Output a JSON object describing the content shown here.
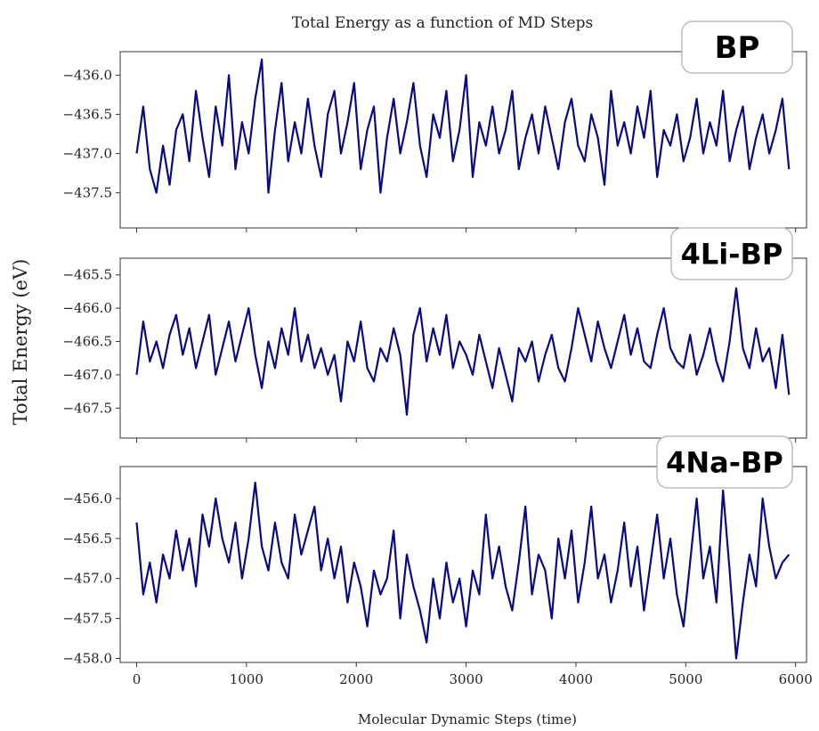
{
  "chart_data": {
    "type": "line",
    "title": "Total Energy as a function of MD Steps",
    "xlabel": "Molecular Dynamic Steps  (time)",
    "ylabel": "Total Energy  (eV)",
    "line_color": "#0a0a80",
    "xlim": [
      -150,
      6100
    ],
    "xticks": [
      0,
      1000,
      2000,
      3000,
      4000,
      5000,
      6000
    ],
    "grid": false,
    "panels": [
      {
        "label": "BP",
        "ylim": [
          -437.95,
          -435.7
        ],
        "yticks": [
          -436.0,
          -436.5,
          -437.0,
          -437.5
        ],
        "ytick_labels": [
          "−436.0",
          "−436.5",
          "−437.0",
          "−437.5"
        ],
        "series": [
          {
            "x_start": 0,
            "x_step": 60,
            "y": [
              -437.0,
              -436.4,
              -437.2,
              -437.5,
              -436.9,
              -437.4,
              -436.7,
              -436.5,
              -437.1,
              -436.2,
              -436.8,
              -437.3,
              -436.4,
              -436.9,
              -436.0,
              -437.2,
              -436.6,
              -437.0,
              -436.3,
              -435.8,
              -437.5,
              -436.7,
              -436.1,
              -437.1,
              -436.6,
              -437.0,
              -436.3,
              -436.9,
              -437.3,
              -436.5,
              -436.2,
              -437.0,
              -436.6,
              -436.1,
              -437.2,
              -436.7,
              -436.4,
              -437.5,
              -436.8,
              -436.3,
              -437.0,
              -436.6,
              -436.1,
              -436.9,
              -437.3,
              -436.5,
              -436.8,
              -436.2,
              -437.1,
              -436.7,
              -436.0,
              -437.3,
              -436.6,
              -436.9,
              -436.4,
              -437.0,
              -436.7,
              -436.2,
              -437.2,
              -436.8,
              -436.5,
              -437.0,
              -436.4,
              -436.8,
              -437.2,
              -436.6,
              -436.3,
              -436.9,
              -437.1,
              -436.5,
              -436.8,
              -437.4,
              -436.2,
              -436.9,
              -436.6,
              -437.0,
              -436.4,
              -436.8,
              -436.2,
              -437.3,
              -436.7,
              -436.9,
              -436.5,
              -437.1,
              -436.8,
              -436.3,
              -437.0,
              -436.6,
              -436.9,
              -436.2,
              -437.1,
              -436.7,
              -436.4,
              -437.2,
              -436.8,
              -436.5,
              -437.0,
              -436.7,
              -436.3,
              -437.2
            ]
          }
        ]
      },
      {
        "label": "4Li-BP",
        "ylim": [
          -467.95,
          -465.25
        ],
        "yticks": [
          -465.5,
          -466.0,
          -466.5,
          -467.0,
          -467.5
        ],
        "ytick_labels": [
          "−465.5",
          "−466.0",
          "−466.5",
          "−467.0",
          "−467.5"
        ],
        "series": [
          {
            "x_start": 0,
            "x_step": 60,
            "y": [
              -467.0,
              -466.2,
              -466.8,
              -466.5,
              -466.9,
              -466.4,
              -466.1,
              -466.7,
              -466.3,
              -466.9,
              -466.5,
              -466.1,
              -467.0,
              -466.6,
              -466.2,
              -466.8,
              -466.4,
              -466.0,
              -466.7,
              -467.2,
              -466.5,
              -466.9,
              -466.3,
              -466.7,
              -466.0,
              -466.8,
              -466.4,
              -466.9,
              -466.6,
              -467.0,
              -466.7,
              -467.4,
              -466.5,
              -466.8,
              -466.2,
              -466.9,
              -467.1,
              -466.6,
              -466.8,
              -466.3,
              -466.7,
              -467.6,
              -466.4,
              -466.0,
              -466.8,
              -466.3,
              -466.7,
              -466.1,
              -466.9,
              -466.5,
              -466.7,
              -467.0,
              -466.4,
              -466.8,
              -467.2,
              -466.6,
              -467.0,
              -467.4,
              -466.6,
              -466.8,
              -466.5,
              -467.1,
              -466.7,
              -466.4,
              -466.9,
              -467.1,
              -466.6,
              -466.0,
              -466.4,
              -466.8,
              -466.2,
              -466.6,
              -466.9,
              -466.5,
              -466.1,
              -466.7,
              -466.3,
              -466.8,
              -466.9,
              -466.4,
              -466.0,
              -466.6,
              -466.8,
              -466.9,
              -466.4,
              -467.0,
              -466.7,
              -466.3,
              -466.8,
              -467.1,
              -466.5,
              -465.7,
              -466.6,
              -466.9,
              -466.3,
              -466.8,
              -466.6,
              -467.2,
              -466.4,
              -467.3
            ]
          }
        ]
      },
      {
        "label": "4Na-BP",
        "ylim": [
          -458.05,
          -455.6
        ],
        "yticks": [
          -456.0,
          -456.5,
          -457.0,
          -457.5,
          -458.0
        ],
        "ytick_labels": [
          "−456.0",
          "−456.5",
          "−457.0",
          "−457.5",
          "−458.0"
        ],
        "series": [
          {
            "x_start": 0,
            "x_step": 60,
            "y": [
              -456.3,
              -457.2,
              -456.8,
              -457.3,
              -456.7,
              -457.0,
              -456.4,
              -456.9,
              -456.5,
              -457.1,
              -456.2,
              -456.6,
              -456.0,
              -456.5,
              -456.8,
              -456.3,
              -457.0,
              -456.5,
              -455.8,
              -456.6,
              -456.9,
              -456.3,
              -456.8,
              -457.0,
              -456.2,
              -456.7,
              -456.4,
              -456.1,
              -456.9,
              -456.5,
              -457.0,
              -456.6,
              -457.3,
              -456.8,
              -457.1,
              -457.6,
              -456.9,
              -457.2,
              -457.0,
              -456.4,
              -457.5,
              -456.7,
              -457.1,
              -457.4,
              -457.8,
              -457.0,
              -457.5,
              -456.8,
              -457.3,
              -457.0,
              -457.6,
              -456.9,
              -457.2,
              -456.2,
              -457.0,
              -456.6,
              -457.1,
              -457.4,
              -456.8,
              -456.1,
              -457.2,
              -456.7,
              -456.9,
              -457.5,
              -456.5,
              -457.0,
              -456.4,
              -457.3,
              -456.8,
              -456.1,
              -457.0,
              -456.7,
              -457.3,
              -456.9,
              -456.3,
              -457.1,
              -456.6,
              -457.4,
              -456.8,
              -456.2,
              -457.0,
              -456.5,
              -457.2,
              -457.6,
              -456.8,
              -456.0,
              -457.0,
              -456.6,
              -457.3,
              -455.9,
              -456.9,
              -458.0,
              -457.3,
              -456.7,
              -457.1,
              -456.0,
              -456.6,
              -457.0,
              -456.8,
              -456.7
            ]
          }
        ]
      }
    ]
  }
}
